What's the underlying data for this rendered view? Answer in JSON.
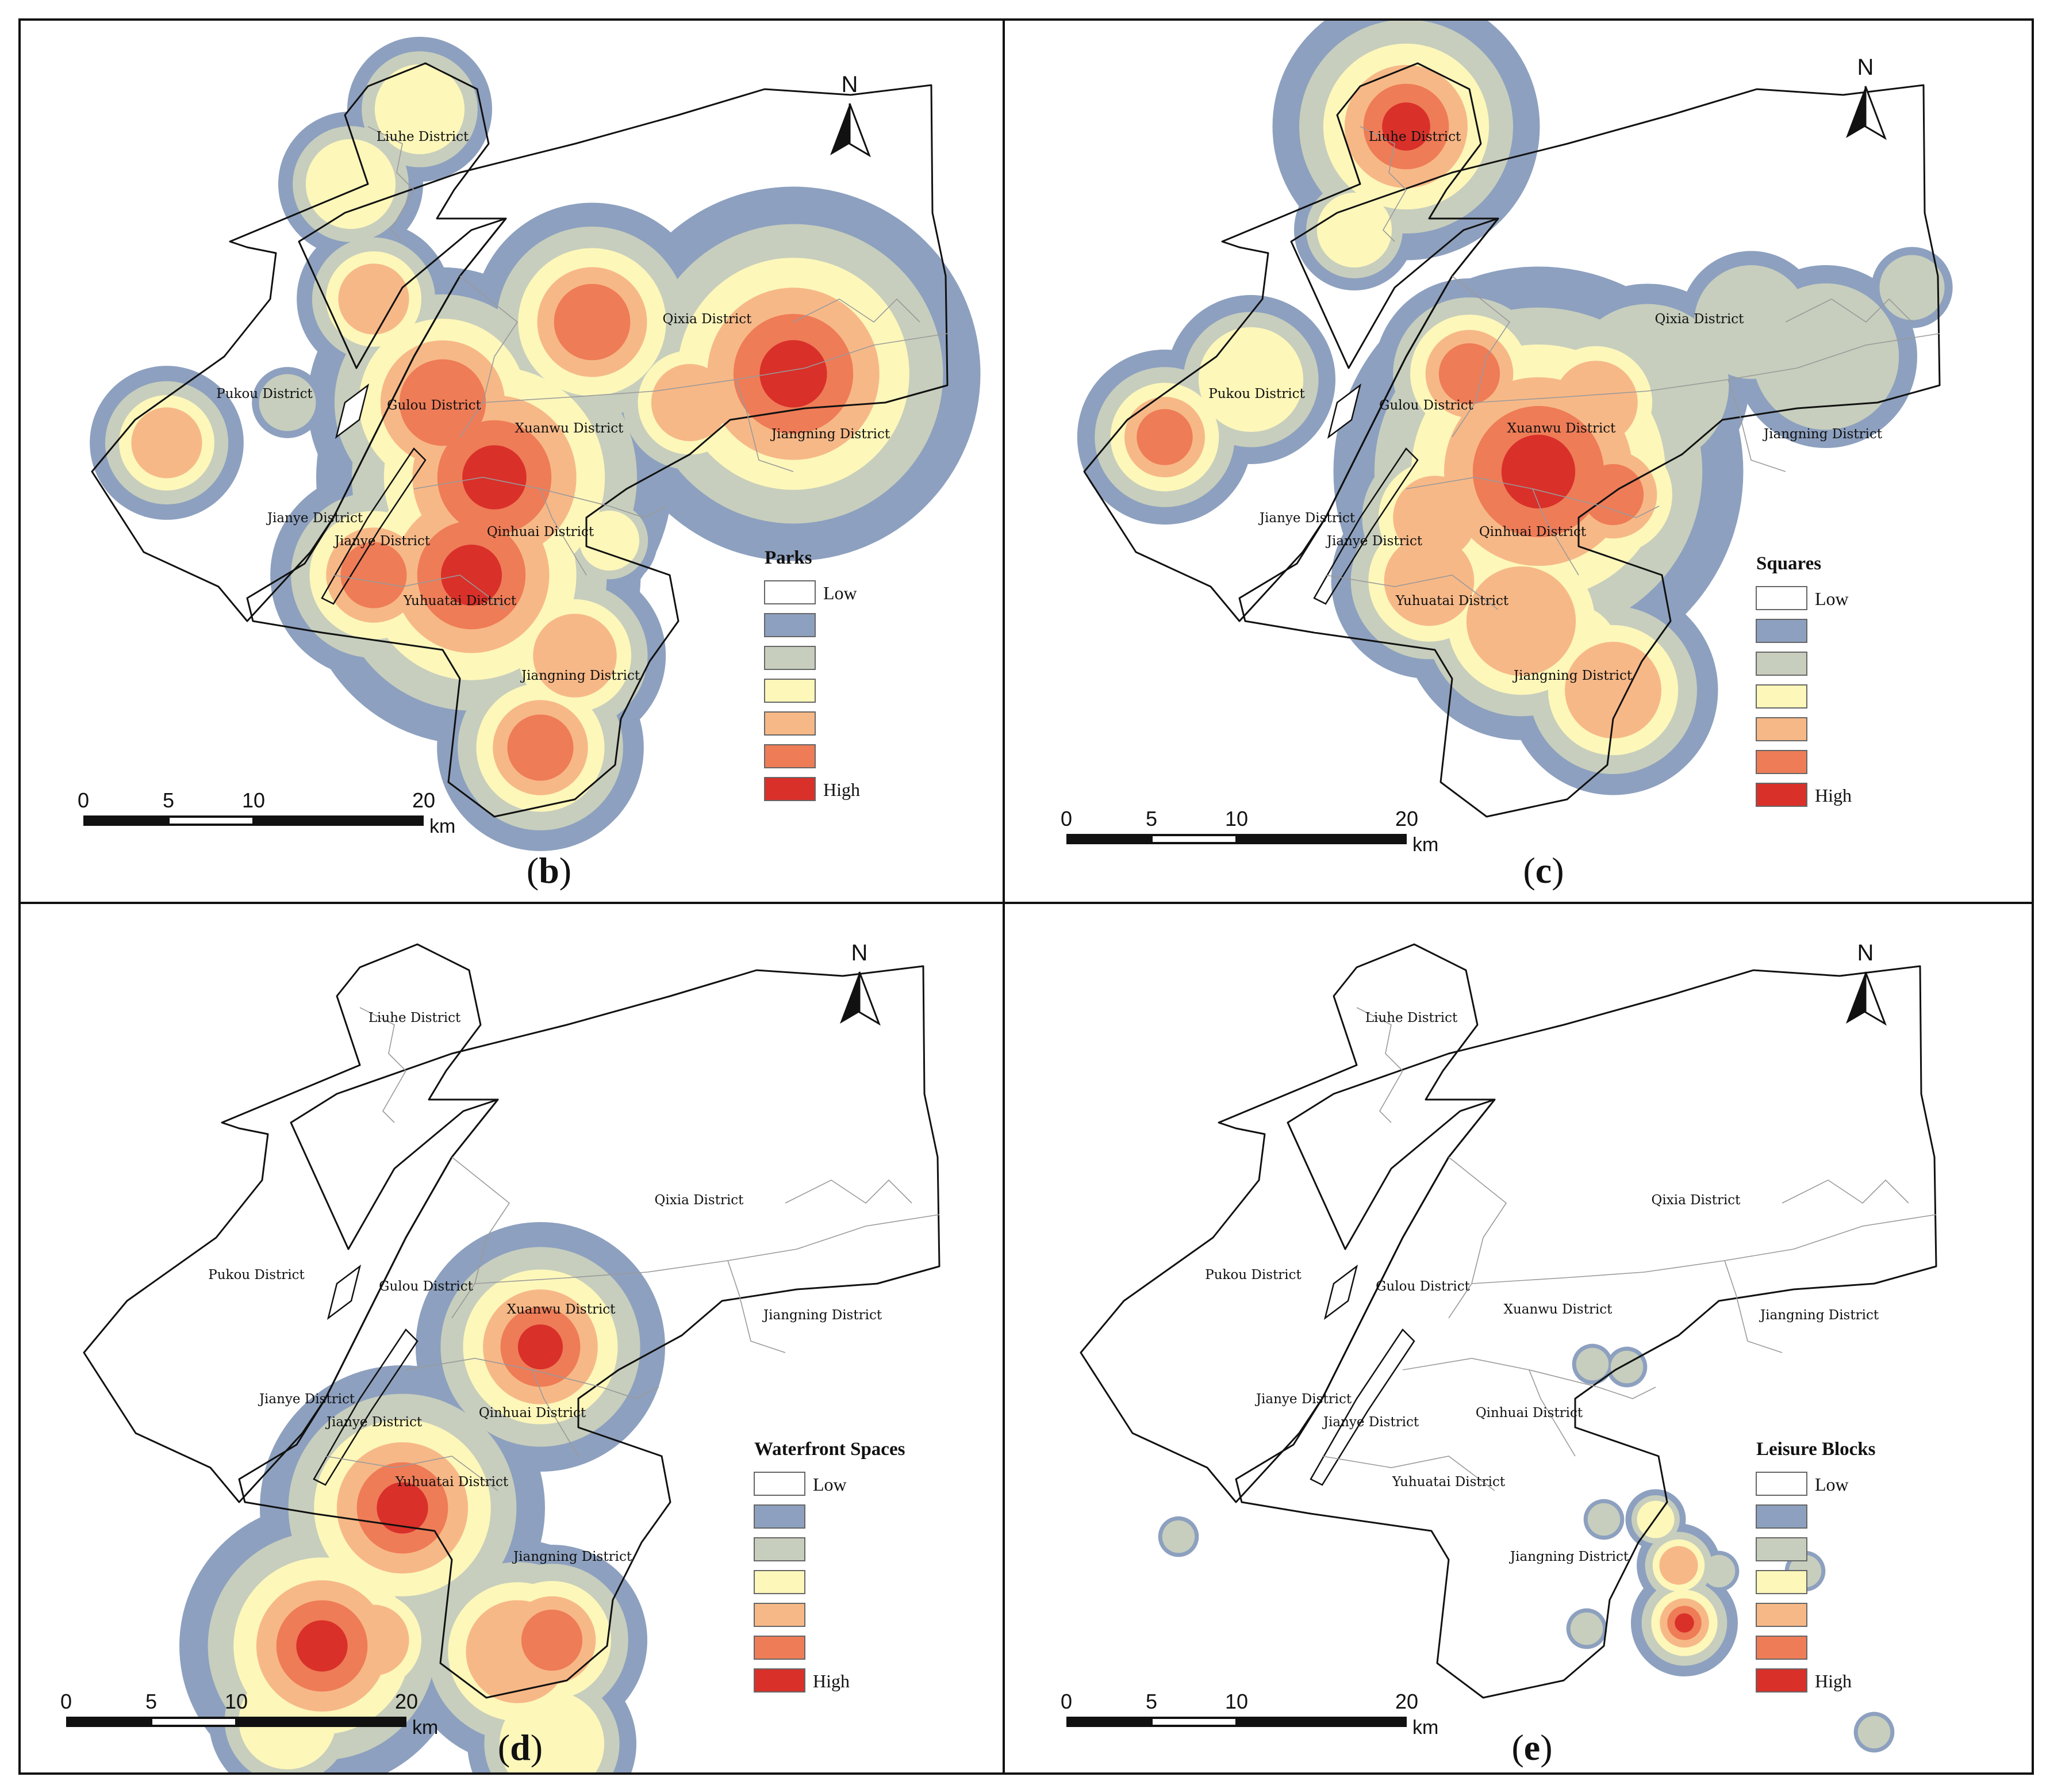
{
  "colors": {
    "low": "#ffffff",
    "c1": "#8da0bf",
    "c2": "#c7cebd",
    "c3": "#fdf7ba",
    "c4": "#f7b887",
    "c5": "#ee7c57",
    "high": "#d9302a"
  },
  "legend_classes": [
    "low",
    "c1",
    "c2",
    "c3",
    "c4",
    "c5",
    "high"
  ],
  "scale": {
    "ticks": [
      "0",
      "5",
      "10",
      "20"
    ],
    "unit": "km"
  },
  "north_label": "N",
  "panels": [
    {
      "id": "b",
      "caption_letter": "b",
      "legend_title": "Parks",
      "legend_low": "Low",
      "legend_high": "High",
      "district_labels": [
        "Liuhe District",
        "Pukou District",
        "Gulou District",
        "Xuanwu District",
        "Qixia District",
        "Jiangning District",
        "Jianye District",
        "Jianye District",
        "Qinhuai District",
        "Yuhuatai District",
        "Jiangning District"
      ]
    },
    {
      "id": "c",
      "caption_letter": "c",
      "legend_title": "Squares",
      "legend_low": "Low",
      "legend_high": "High",
      "district_labels": [
        "Liuhe District",
        "Pukou District",
        "Gulou District",
        "Xuanwu District",
        "Qixia District",
        "Jiangning District",
        "Jianye District",
        "Jianye District",
        "Qinhuai District",
        "Yuhuatai District",
        "Jiangning District"
      ]
    },
    {
      "id": "d",
      "caption_letter": "d",
      "legend_title": "Waterfront Spaces",
      "legend_low": "Low",
      "legend_high": "High",
      "district_labels": [
        "Liuhe District",
        "Pukou District",
        "Gulou District",
        "Xuanwu District",
        "Qixia District",
        "Jiangning District",
        "Jianye District",
        "Jianye District",
        "Qinhuai District",
        "Yuhuatai District",
        "Jiangning District"
      ]
    },
    {
      "id": "e",
      "caption_letter": "e",
      "legend_title": "Leisure Blocks",
      "legend_low": "Low",
      "legend_high": "High",
      "district_labels": [
        "Liuhe District",
        "Pukou District",
        "Gulou District",
        "Xuanwu District",
        "Qixia District",
        "Jiangning District",
        "Jianye District",
        "Jianye District",
        "Qinhuai District",
        "Yuhuatai District",
        "Jiangning District"
      ]
    }
  ]
}
